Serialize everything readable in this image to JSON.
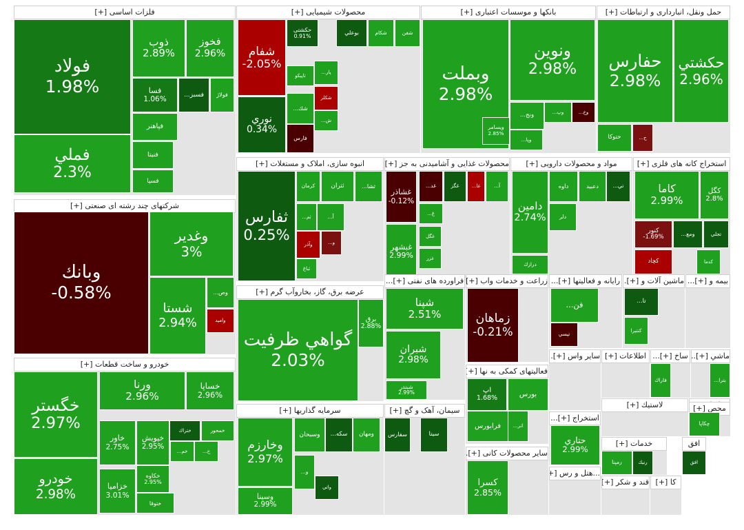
{
  "colors": {
    "up": "#1fa01f",
    "up_light": "#3cb82a",
    "up_dark": "#0d5a10",
    "up_mid": "#157a16",
    "down": "#aa0000",
    "down_dark": "#4a0000",
    "down_mid": "#7a1010"
  },
  "chart_data": {
    "type": "treemap",
    "sectors": [
      {
        "id": "s1",
        "title": "فلزات اساسی [+]",
        "cells": [
          {
            "name": "فولاد",
            "pct": "1.98%",
            "color": "up_mid"
          },
          {
            "name": "فملي",
            "pct": "2.3%",
            "color": "up"
          },
          {
            "name": "ذوب",
            "pct": "2.89%",
            "color": "up"
          },
          {
            "name": "فخوز",
            "pct": "2.96%",
            "color": "up"
          },
          {
            "name": "فسا",
            "pct": "1.06%",
            "color": "up_mid"
          },
          {
            "name": "فسبز...",
            "pct": "",
            "color": "up_dark"
          },
          {
            "name": "فولاژ",
            "pct": "",
            "color": "up"
          },
          {
            "name": "فپاهنر",
            "pct": "",
            "color": "up"
          },
          {
            "name": "فنيتا",
            "pct": "",
            "color": "up"
          },
          {
            "name": "فسپا",
            "pct": "",
            "color": "up"
          }
        ]
      },
      {
        "id": "s2",
        "title": "محصولات شیمیایی [+]",
        "cells": [
          {
            "name": "شفام",
            "pct": "-2.05%",
            "color": "down"
          },
          {
            "name": "نوري",
            "pct": "0.34%",
            "color": "up_dark"
          },
          {
            "name": "حکشتی",
            "pct": "0.91%",
            "color": "up_dark"
          },
          {
            "name": "بوعلي",
            "pct": "",
            "color": "up_dark"
          },
          {
            "name": "شكام",
            "pct": "",
            "color": "up"
          },
          {
            "name": "شفن",
            "pct": "",
            "color": "up"
          },
          {
            "name": "تاپيكو",
            "pct": "",
            "color": "up"
          },
          {
            "name": "پار...",
            "pct": "",
            "color": "up"
          },
          {
            "name": "شكلر",
            "pct": "",
            "color": "down"
          },
          {
            "name": "شك...",
            "pct": "",
            "color": "up"
          },
          {
            "name": "فارس",
            "pct": "",
            "color": "down_dark"
          },
          {
            "name": "ش...",
            "pct": "",
            "color": "up"
          }
        ]
      },
      {
        "id": "s3",
        "title": "بانکها و موسسات اعتباری [+]",
        "cells": [
          {
            "name": "ونوين",
            "pct": "2.98%",
            "color": "up"
          },
          {
            "name": "وبملت",
            "pct": "2.98%",
            "color": "up"
          },
          {
            "name": "ونج...",
            "pct": "",
            "color": "up"
          },
          {
            "name": "وپ...",
            "pct": "",
            "color": "up"
          },
          {
            "name": "وخ...",
            "pct": "",
            "color": "down_dark"
          },
          {
            "name": "وپا...",
            "pct": "",
            "color": "up"
          },
          {
            "name": "ويسامر",
            "pct": "2.85%",
            "color": "up"
          }
        ]
      },
      {
        "id": "s4",
        "title": "حمل ونقل، انبارداری و ارتباطات [+]",
        "cells": [
          {
            "name": "حفارس",
            "pct": "2.98%",
            "color": "up"
          },
          {
            "name": "حكشتي",
            "pct": "2.96%",
            "color": "up"
          },
          {
            "name": "حتوكا",
            "pct": "",
            "color": "up"
          },
          {
            "name": "ح...",
            "pct": "",
            "color": "down_mid"
          }
        ]
      },
      {
        "id": "s5",
        "title": "شرکتهای چند رشته ای صنعتی [+]",
        "cells": [
          {
            "name": "وبانك",
            "pct": "-0.58%",
            "color": "down_dark"
          },
          {
            "name": "وغدير",
            "pct": "3%",
            "color": "up"
          },
          {
            "name": "شستا",
            "pct": "2.94%",
            "color": "up"
          },
          {
            "name": "وص...",
            "pct": "",
            "color": "up"
          },
          {
            "name": "واميد",
            "pct": "",
            "color": "down"
          }
        ]
      },
      {
        "id": "s6",
        "title": "انبوه سازی، املاک و مستغلات [+]",
        "cells": [
          {
            "name": "ثفارس",
            "pct": "0.25%",
            "color": "up_dark"
          },
          {
            "name": "كرمان",
            "pct": "",
            "color": "up"
          },
          {
            "name": "ثتران",
            "pct": "",
            "color": "up"
          },
          {
            "name": "ثشا...",
            "pct": "",
            "color": "up"
          },
          {
            "name": "آ...",
            "pct": "",
            "color": "up"
          },
          {
            "name": "ثم...",
            "pct": "",
            "color": "up"
          },
          {
            "name": "وآذر",
            "pct": "",
            "color": "down"
          },
          {
            "name": "و...",
            "pct": "",
            "color": "down_mid"
          },
          {
            "name": "ثباغ",
            "pct": "",
            "color": "up"
          }
        ]
      },
      {
        "id": "s7",
        "title": "محصولات غذایی و آشامیدنی به جز [+]",
        "cells": [
          {
            "name": "غشاذر",
            "pct": "-0.12%",
            "color": "down_dark"
          },
          {
            "name": "غد...",
            "pct": "",
            "color": "down_dark"
          },
          {
            "name": "غگز",
            "pct": "",
            "color": "up_dark"
          },
          {
            "name": "غا...",
            "pct": "",
            "color": "down"
          },
          {
            "name": "آ...",
            "pct": "",
            "color": "up"
          },
          {
            "name": "غ...",
            "pct": "",
            "color": "up"
          },
          {
            "name": "غگل",
            "pct": "",
            "color": "up"
          },
          {
            "name": "غزر",
            "pct": "",
            "color": "up"
          },
          {
            "name": "غبشهر",
            "pct": "2.99%",
            "color": "up"
          }
        ]
      },
      {
        "id": "s8",
        "title": "مواد و محصولات دارویی [+]",
        "cells": [
          {
            "name": "دامين",
            "pct": "2.74%",
            "color": "up"
          },
          {
            "name": "داوه",
            "pct": "",
            "color": "up"
          },
          {
            "name": "دعبيد",
            "pct": "",
            "color": "up"
          },
          {
            "name": "تي...",
            "pct": "",
            "color": "up_dark"
          },
          {
            "name": "دلر",
            "pct": "",
            "color": "up"
          },
          {
            "name": "درازك",
            "pct": "",
            "color": "up"
          }
        ]
      },
      {
        "id": "s9",
        "title": "استخراج کانه های فلزی [+]",
        "cells": [
          {
            "name": "كاما",
            "pct": "2.99%",
            "color": "up"
          },
          {
            "name": "كگل",
            "pct": "2.8%",
            "color": "up"
          },
          {
            "name": "كنور",
            "pct": "-1.69%",
            "color": "down_mid"
          },
          {
            "name": "ومع...",
            "pct": "",
            "color": "up_dark"
          },
          {
            "name": "تجلي",
            "pct": "",
            "color": "up_dark"
          },
          {
            "name": "كچاد",
            "pct": "",
            "color": "down"
          },
          {
            "name": "كدما",
            "pct": "",
            "color": "up"
          }
        ]
      },
      {
        "id": "s10",
        "title": "عرضه برق، گاز، بخاروآب گرم [+]",
        "cells": [
          {
            "name": "گواهي ظرفيت",
            "pct": "2.03%",
            "color": "up"
          },
          {
            "name": "برق",
            "pct": "2.88%",
            "color": "up"
          }
        ]
      },
      {
        "id": "s11",
        "title": "فراورده های نفتی [+]...",
        "cells": [
          {
            "name": "شپنا",
            "pct": "2.51%",
            "color": "up"
          },
          {
            "name": "شبران",
            "pct": "2.98%",
            "color": "up"
          },
          {
            "name": "شبندر",
            "pct": "2.99%",
            "color": "up"
          }
        ]
      },
      {
        "id": "s12",
        "title": "زراعت و خدمات واب [+]...",
        "cells": [
          {
            "name": "زماهان",
            "pct": "-0.21%",
            "color": "down_dark"
          }
        ]
      },
      {
        "id": "s13",
        "title": "رایانه و فعالیتها [+]...",
        "cells": [
          {
            "name": "فن...",
            "pct": "",
            "color": "up"
          },
          {
            "name": "تپسي",
            "pct": "",
            "color": "down_dark"
          }
        ]
      },
      {
        "id": "s14",
        "title": "ماشین آلات و [+]...",
        "cells": [
          {
            "name": "تا...",
            "pct": "",
            "color": "up_dark"
          },
          {
            "name": "كنتيرا",
            "pct": "",
            "color": "up"
          }
        ]
      },
      {
        "id": "s15",
        "title": "بیمه و [+]...",
        "cells": []
      },
      {
        "id": "s16",
        "title": "خودرو و ساخت قطعات [+]",
        "cells": [
          {
            "name": "خگستر",
            "pct": "2.97%",
            "color": "up"
          },
          {
            "name": "خودرو",
            "pct": "2.98%",
            "color": "up"
          },
          {
            "name": "ورنا",
            "pct": "2.96%",
            "color": "up"
          },
          {
            "name": "خساپا",
            "pct": "2.96%",
            "color": "up"
          },
          {
            "name": "ختراك",
            "pct": "",
            "color": "up_dark"
          },
          {
            "name": "خمحور",
            "pct": "",
            "color": "up"
          },
          {
            "name": "خم...",
            "pct": "",
            "color": "up"
          },
          {
            "name": "خ...",
            "pct": "",
            "color": "up"
          },
          {
            "name": "خاور",
            "pct": "2.75%",
            "color": "up"
          },
          {
            "name": "خپويش",
            "pct": "2.95%",
            "color": "up"
          },
          {
            "name": "خكاوه",
            "pct": "2.95%",
            "color": "up"
          },
          {
            "name": "ختوقا",
            "pct": "",
            "color": "up"
          },
          {
            "name": "خزامیا",
            "pct": "3.01%",
            "color": "up"
          }
        ]
      },
      {
        "id": "s17",
        "title": "سرمایه گذاریها [+]",
        "cells": [
          {
            "name": "وخارزم",
            "pct": "2.97%",
            "color": "up"
          },
          {
            "name": "وسبحان",
            "pct": "",
            "color": "up"
          },
          {
            "name": "سكه...",
            "pct": "",
            "color": "up_dark"
          },
          {
            "name": "ومهان",
            "pct": "",
            "color": "up"
          },
          {
            "name": "و...",
            "pct": "",
            "color": "up"
          },
          {
            "name": "واتي",
            "pct": "",
            "color": "up_dark"
          },
          {
            "name": "وسينا",
            "pct": "2.99%",
            "color": "up"
          }
        ]
      },
      {
        "id": "s18",
        "title": "سیمان، آهک و گچ [+]",
        "cells": [
          {
            "name": "سفارس",
            "pct": "",
            "color": "up_dark"
          },
          {
            "name": "سيتا",
            "pct": "",
            "color": "up_dark"
          }
        ]
      },
      {
        "id": "s19",
        "title": "فعالیتهای کمکی به نها [+]...",
        "cells": [
          {
            "name": "بورس",
            "pct": "",
            "color": "up"
          },
          {
            "name": "انر...",
            "pct": "",
            "color": "up"
          },
          {
            "name": "فرابورس",
            "pct": "",
            "color": "up"
          },
          {
            "name": "اپ",
            "pct": "1.68%",
            "color": "up_mid"
          }
        ]
      },
      {
        "id": "s20",
        "title": "سایر محصولات کانی [+]...",
        "cells": [
          {
            "name": "كسرا",
            "pct": "2.85%",
            "color": "up"
          }
        ]
      },
      {
        "id": "s21",
        "title": "سایر واس [+]...",
        "cells": []
      },
      {
        "id": "s22",
        "title": "اطلاعات [+]",
        "cells": []
      },
      {
        "id": "s23",
        "title": "ساخ [+]...",
        "cells": [
          {
            "name": "فاراك",
            "pct": "",
            "color": "up"
          }
        ]
      },
      {
        "id": "s24",
        "title": "ماشي [+]...",
        "cells": [
          {
            "name": "بترا...",
            "pct": "",
            "color": "up"
          }
        ]
      },
      {
        "id": "s25",
        "title": "استخراج [+]...",
        "cells": [
          {
            "name": "حتاري",
            "pct": "2.99%",
            "color": "up"
          }
        ]
      },
      {
        "id": "s26",
        "title": "لاستیك [+]",
        "cells": []
      },
      {
        "id": "s27",
        "title": "مخابرات [+]",
        "cells": [
          {
            "name": "اخابر",
            "pct": "",
            "color": "up"
          }
        ]
      },
      {
        "id": "s28",
        "title": "محص [+]",
        "cells": [
          {
            "name": "چكاپا",
            "pct": "",
            "color": "up"
          }
        ]
      },
      {
        "id": "s29",
        "title": "خدمات [+]",
        "cells": [
          {
            "name": "رنيك",
            "pct": "",
            "color": "up_dark"
          },
          {
            "name": "رمپنا",
            "pct": "",
            "color": "up"
          }
        ]
      },
      {
        "id": "s30",
        "title": "...هتل و رس [+]",
        "cells": []
      },
      {
        "id": "s31",
        "title": "قند و شكر [+]",
        "cells": []
      },
      {
        "id": "s32",
        "title": "كا [+]",
        "cells": []
      },
      {
        "id": "s33",
        "title": "افق",
        "cells": [
          {
            "name": "افق",
            "pct": "",
            "color": "up_dark"
          }
        ]
      }
    ]
  }
}
